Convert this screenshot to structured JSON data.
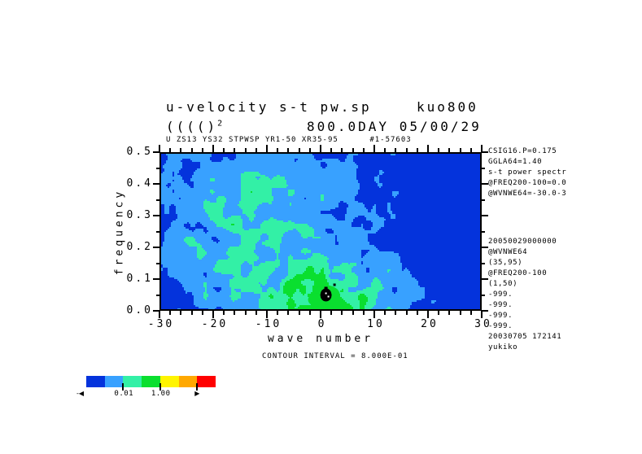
{
  "page": {
    "background": "#ffffff",
    "text_color": "#000000"
  },
  "header": {
    "title_left": "u-velocity s-t pw.sp",
    "title_right": "kuo800",
    "subtitle_base": "(((()",
    "subtitle_sup": "2",
    "subtitle_right": "800.0DAY 05/00/29",
    "meta_line": "U ZS13 YS32 STPWSP YR1-50 XR35-95      #1-57603"
  },
  "chart_data": {
    "type": "heatmap",
    "title": "u-velocity s-t pw.sp   kuo800",
    "subtitle": "(((()^2   800.0DAY 05/00/29",
    "xlabel": "wave number",
    "ylabel": "frequency",
    "xlim": [
      -30,
      30
    ],
    "ylim": [
      0.0,
      0.5
    ],
    "x_tick_values": [
      -30,
      -20,
      -10,
      0,
      10,
      20,
      30
    ],
    "x_tick_labels": [
      "-30",
      "-20",
      "-10",
      "0",
      "10",
      "20",
      "30"
    ],
    "x_minor_step": 2,
    "y_tick_values": [
      0.0,
      0.1,
      0.2,
      0.3,
      0.4,
      0.5
    ],
    "y_tick_labels": [
      "0.0",
      "0.1",
      "0.2",
      "0.3",
      "0.4",
      "0.5"
    ],
    "y_minor_step": 0.05,
    "grid": false,
    "legend_position": "bottom-left colorbar",
    "field_description": "Noisy 2-D space-time power spectrum filled-contour field. Power is maximal at low frequency (<0.15) for wave numbers -10..+10, with the absolute peak (black contour cluster) at wave number ~1, frequency ~0.05. Moderate scattered power (light blue / cyan patches) covers negative wave numbers at all frequencies; lowest uniform level (dark blue) dominates high frequencies at large positive wave numbers.",
    "peak": {
      "wave_number": 1,
      "frequency": 0.05
    },
    "levels": [
      {
        "name": "level-1",
        "color": "#0433DC"
      },
      {
        "name": "level-2",
        "color": "#38A1FF"
      },
      {
        "name": "level-3",
        "color": "#33F0A6"
      },
      {
        "name": "level-4",
        "color": "#0ADF2F"
      },
      {
        "name": "level-5",
        "color": "#FFF400"
      },
      {
        "name": "level-6",
        "color": "#FFA800"
      },
      {
        "name": "level-7",
        "color": "#FF0000"
      }
    ],
    "colorbar": {
      "left_arrow": "-◀",
      "label_001": "0.01",
      "label_100": "1.00",
      "right_arrow": "▶"
    },
    "contour_interval_label": "CONTOUR INTERVAL = 8.000E-01"
  },
  "annotations_right": {
    "top_lines": [
      "CSIG16.P=0.175",
      "GGLA64=1.40",
      "s-t power spectr",
      "@FREQ200-100=0.0",
      "@WVNWE64=-30.0-3"
    ],
    "bottom_lines": [
      "20050029000000",
      "@WVNWE64",
      "(35,95)",
      "@FREQ200-100",
      "(1,50)",
      "-999.",
      "-999.",
      "-999.",
      "-999.",
      "20030705 172141",
      "yukiko"
    ]
  }
}
